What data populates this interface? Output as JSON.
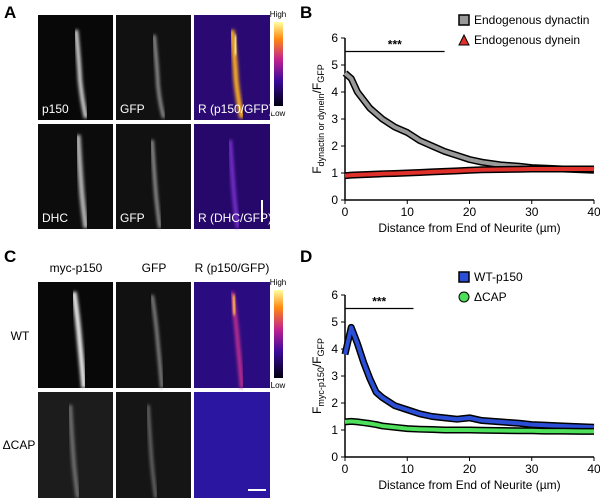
{
  "panel_labels": [
    "A",
    "B",
    "C",
    "D"
  ],
  "panel_a": {
    "colorbar": {
      "high": "High",
      "low": "Low"
    },
    "row1": [
      "p150",
      "GFP",
      "R (p150/GFP)"
    ],
    "row2": [
      "DHC",
      "GFP",
      "R (DHC/GFP)"
    ]
  },
  "panel_c": {
    "columns": [
      "myc-p150",
      "GFP",
      "R (p150/GFP)"
    ],
    "rows": [
      "WT",
      "ΔCAP"
    ],
    "colorbar": {
      "high": "High",
      "low": "Low"
    }
  },
  "chart_data": [
    {
      "type": "line",
      "xlabel": "Distance from End of Neurite (µm)",
      "ylabel": [
        "F",
        "dynactin or dynein",
        "/F",
        "GFP"
      ],
      "xlim": [
        0,
        40
      ],
      "ylim": [
        0,
        6
      ],
      "xticks": [
        0,
        10,
        20,
        30,
        40
      ],
      "yticks": [
        0,
        1,
        2,
        3,
        4,
        5,
        6
      ],
      "legend": "upper right",
      "significance": {
        "label": "***",
        "x": [
          0,
          16
        ],
        "y": 5.5
      },
      "x": [
        0,
        1,
        2,
        3,
        4,
        5,
        6,
        8,
        10,
        12,
        14,
        16,
        18,
        20,
        22,
        25,
        28,
        30,
        32,
        35,
        38,
        40
      ],
      "series": [
        {
          "name": "Endogenous dynactin",
          "color": "#999999",
          "marker": "square",
          "values": [
            4.7,
            4.5,
            4.0,
            3.7,
            3.4,
            3.2,
            3.0,
            2.7,
            2.5,
            2.2,
            2.0,
            1.8,
            1.65,
            1.5,
            1.4,
            1.3,
            1.25,
            1.2,
            1.18,
            1.15,
            1.12,
            1.1
          ]
        },
        {
          "name": "Endogenous dynein",
          "color": "#e0302a",
          "marker": "triangle",
          "values": [
            0.9,
            0.92,
            0.93,
            0.94,
            0.95,
            0.96,
            0.97,
            0.98,
            1.0,
            1.02,
            1.04,
            1.06,
            1.08,
            1.1,
            1.12,
            1.13,
            1.14,
            1.15,
            1.15,
            1.15,
            1.15,
            1.15
          ]
        }
      ]
    },
    {
      "type": "line",
      "xlabel": "Distance from End of Neurite (µm)",
      "ylabel": [
        "F",
        "myc-p150",
        "/F",
        "GFP"
      ],
      "xlim": [
        0,
        40
      ],
      "ylim": [
        0,
        6
      ],
      "xticks": [
        0,
        10,
        20,
        30,
        40
      ],
      "yticks": [
        0,
        1,
        2,
        3,
        4,
        5,
        6
      ],
      "legend": "upper right",
      "significance": {
        "label": "***",
        "x": [
          0,
          11
        ],
        "y": 5.5
      },
      "x": [
        0,
        1,
        2,
        3,
        4,
        5,
        6,
        8,
        10,
        12,
        14,
        16,
        18,
        20,
        22,
        25,
        28,
        30,
        32,
        35,
        38,
        40
      ],
      "series": [
        {
          "name": "WT-p150",
          "color": "#2a4fd6",
          "marker": "square",
          "values": [
            3.8,
            4.8,
            4.2,
            3.5,
            2.9,
            2.4,
            2.2,
            1.9,
            1.75,
            1.6,
            1.5,
            1.45,
            1.4,
            1.45,
            1.35,
            1.3,
            1.25,
            1.2,
            1.18,
            1.15,
            1.12,
            1.1
          ]
        },
        {
          "name": "ΔCAP",
          "color": "#4ee05a",
          "marker": "circle",
          "values": [
            1.3,
            1.32,
            1.3,
            1.27,
            1.24,
            1.2,
            1.15,
            1.1,
            1.05,
            1.03,
            1.02,
            1.0,
            1.0,
            1.0,
            0.99,
            0.98,
            0.97,
            0.97,
            0.96,
            0.96,
            0.95,
            0.95
          ]
        }
      ]
    }
  ]
}
